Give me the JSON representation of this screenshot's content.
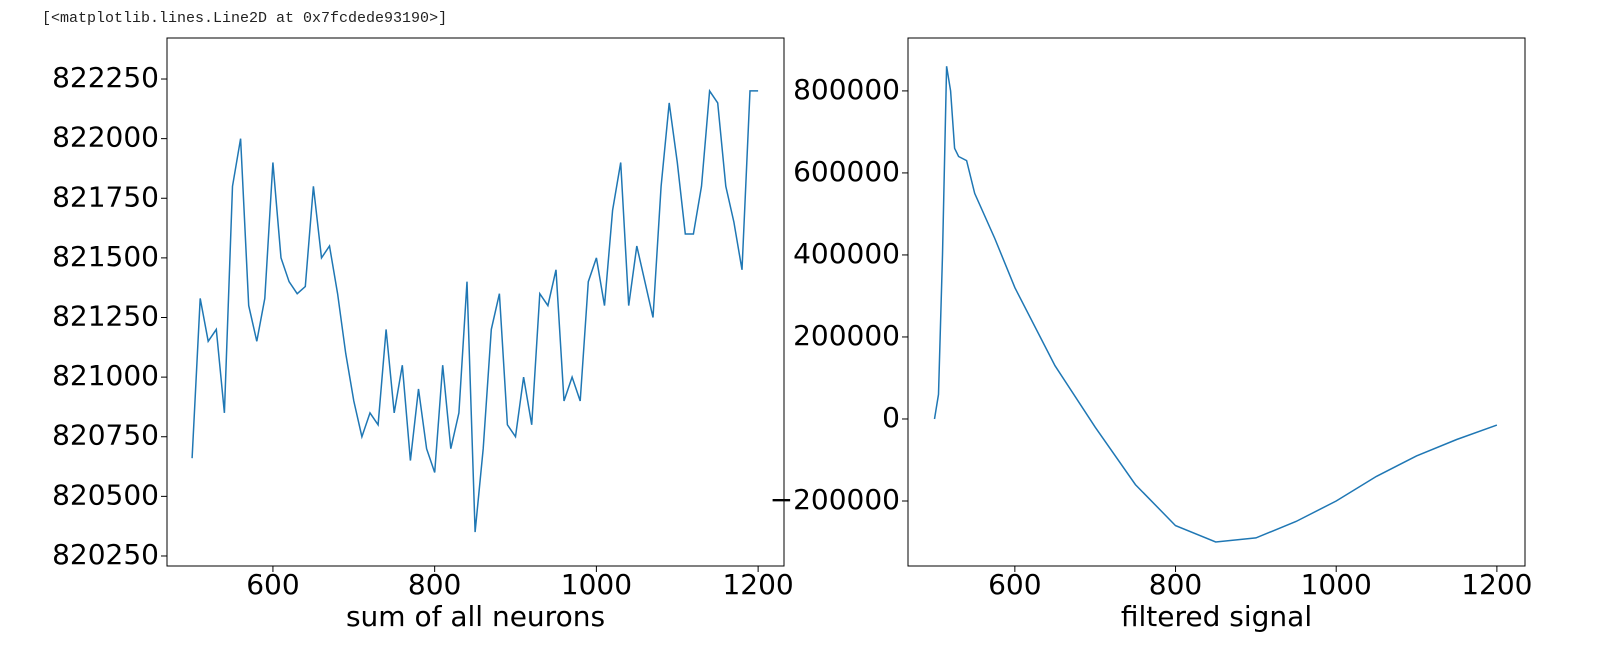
{
  "output_text": "[<matplotlib.lines.Line2D at 0x7fcdede93190>]",
  "chart_data": [
    {
      "type": "line",
      "xlabel": "sum of all neurons",
      "color": "#1f77b4",
      "xlim": [
        469,
        1232
      ],
      "ylim": [
        820208,
        822422
      ],
      "xticks": [
        600,
        800,
        1000,
        1200
      ],
      "yticks": [
        820250,
        820500,
        820750,
        821000,
        821250,
        821500,
        821750,
        822000,
        822250
      ],
      "x": [
        500,
        510,
        520,
        530,
        540,
        550,
        560,
        570,
        580,
        590,
        600,
        610,
        620,
        630,
        640,
        650,
        660,
        670,
        680,
        690,
        700,
        710,
        720,
        730,
        740,
        750,
        760,
        770,
        780,
        790,
        800,
        810,
        820,
        830,
        840,
        850,
        860,
        870,
        880,
        890,
        900,
        910,
        920,
        930,
        940,
        950,
        960,
        970,
        980,
        990,
        1000,
        1010,
        1020,
        1030,
        1040,
        1050,
        1060,
        1070,
        1080,
        1090,
        1100,
        1110,
        1120,
        1130,
        1140,
        1150,
        1160,
        1170,
        1180,
        1190,
        1200
      ],
      "values": [
        820660,
        821330,
        821150,
        821200,
        820850,
        821800,
        822000,
        821300,
        821150,
        821330,
        821900,
        821500,
        821400,
        821350,
        821380,
        821800,
        821500,
        821550,
        821350,
        821100,
        820900,
        820750,
        820850,
        820800,
        821200,
        820850,
        821050,
        820650,
        820950,
        820700,
        820600,
        821050,
        820700,
        820850,
        821400,
        820350,
        820700,
        821200,
        821350,
        820800,
        820750,
        821000,
        820800,
        821350,
        821300,
        821450,
        820900,
        821000,
        820900,
        821400,
        821500,
        821300,
        821700,
        821900,
        821300,
        821550,
        821400,
        821250,
        821800,
        822150,
        821900,
        821600,
        821600,
        821800,
        822200,
        822150,
        821800,
        821650,
        821450,
        822200,
        822200
      ]
    },
    {
      "type": "line",
      "xlabel": "filtered signal",
      "color": "#1f77b4",
      "xlim": [
        467,
        1235
      ],
      "ylim": [
        -358500,
        929000
      ],
      "xticks": [
        600,
        800,
        1000,
        1200
      ],
      "yticks": [
        {
          "value": -200000,
          "label": "−200000"
        },
        0,
        200000,
        400000,
        600000,
        800000
      ],
      "x": [
        500,
        505,
        510,
        515,
        520,
        525,
        530,
        540,
        550,
        575,
        600,
        650,
        700,
        750,
        800,
        850,
        900,
        950,
        1000,
        1050,
        1100,
        1150,
        1200
      ],
      "values": [
        0,
        60000,
        400000,
        860000,
        800000,
        660000,
        640000,
        630000,
        550000,
        440000,
        320000,
        130000,
        -20000,
        -160000,
        -260000,
        -300000,
        -290000,
        -250000,
        -200000,
        -140000,
        -90000,
        -50000,
        -15000
      ]
    }
  ]
}
